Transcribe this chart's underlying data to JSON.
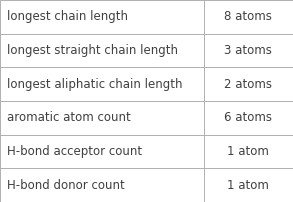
{
  "rows": [
    [
      "longest chain length",
      "8 atoms"
    ],
    [
      "longest straight chain length",
      "3 atoms"
    ],
    [
      "longest aliphatic chain length",
      "2 atoms"
    ],
    [
      "aromatic atom count",
      "6 atoms"
    ],
    [
      "H-bond acceptor count",
      "1 atom"
    ],
    [
      "H-bond donor count",
      "1 atom"
    ]
  ],
  "col_split": 0.695,
  "bg_color": "#ffffff",
  "border_color": "#b0b0b0",
  "text_color_left": "#404040",
  "text_color_right": "#404040",
  "font_size": 8.5,
  "fig_width": 2.93,
  "fig_height": 2.02,
  "dpi": 100
}
